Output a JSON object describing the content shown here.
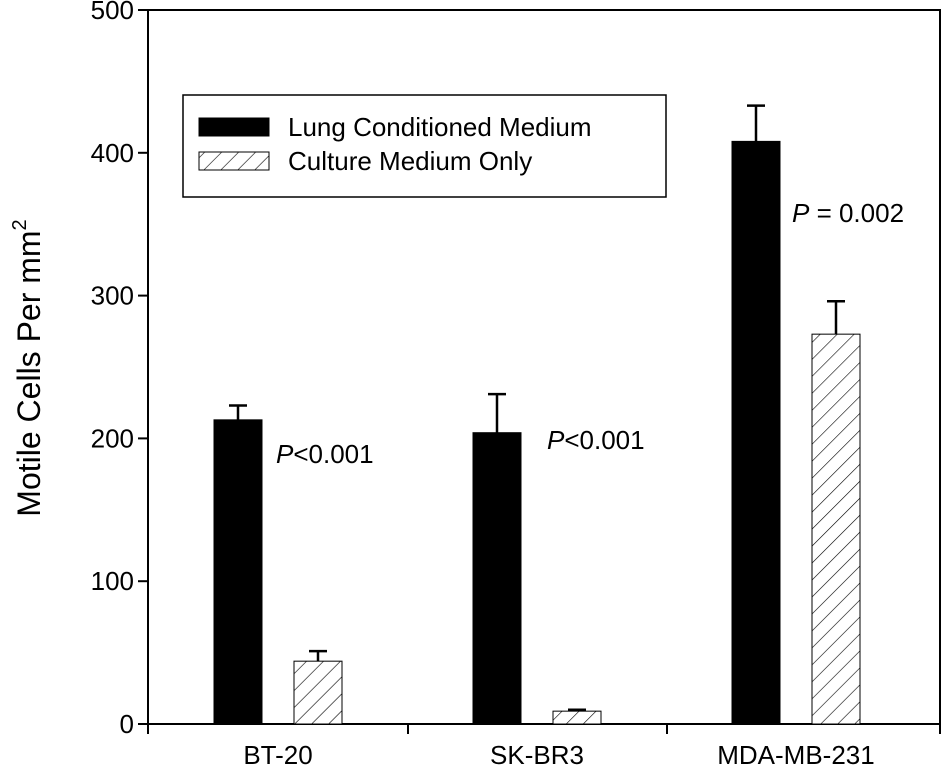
{
  "chart_data": {
    "type": "bar",
    "categories": [
      "BT-20",
      "SK-BR3",
      "MDA-MB-231"
    ],
    "series": [
      {
        "name": "Lung Conditioned Medium",
        "values": [
          213,
          204,
          408
        ],
        "errors": [
          10,
          27,
          25
        ],
        "fill": "solid",
        "color": "#000000"
      },
      {
        "name": "Culture Medium Only",
        "values": [
          44,
          9,
          273
        ],
        "errors": [
          7,
          1,
          23
        ],
        "fill": "hatched",
        "color": "#ffffff"
      }
    ],
    "ylabel": "Motile Cells Per mm",
    "ylabel_superscript": "2",
    "ylim": [
      0,
      500
    ],
    "yticks": [
      "0",
      "100",
      "200",
      "300",
      "400",
      "500"
    ],
    "legend_position": "top-left",
    "grid": false,
    "annotations": [
      {
        "italic": "P",
        "text": "<0.001",
        "category": "BT-20"
      },
      {
        "italic": "P",
        "text": "<0.001",
        "category": "SK-BR3"
      },
      {
        "italic": "P",
        "text": " = 0.002",
        "category": "MDA-MB-231"
      }
    ]
  }
}
